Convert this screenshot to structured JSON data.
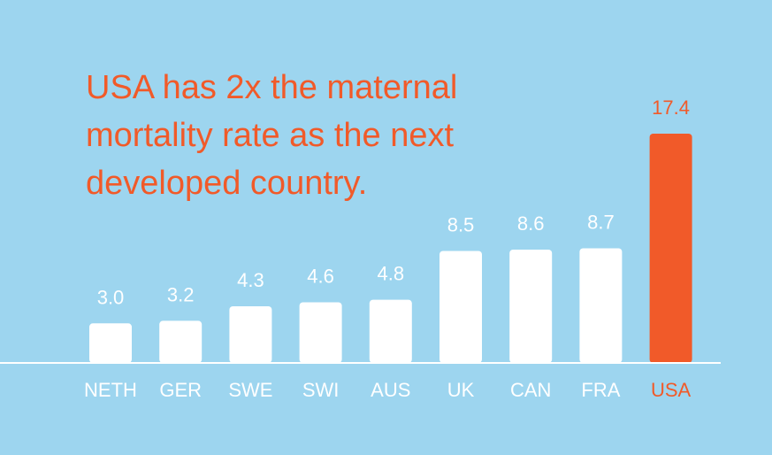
{
  "title_lines": [
    "USA has 2x the maternal",
    "mortality rate as the next",
    "developed country."
  ],
  "colors": {
    "background": "#9dd5ef",
    "bar_default": "#ffffff",
    "bar_highlight": "#f15a29",
    "text_default": "#ffffff",
    "text_highlight": "#f15a29"
  },
  "chart_data": {
    "type": "bar",
    "categories": [
      "NETH",
      "GER",
      "SWE",
      "SWI",
      "AUS",
      "UK",
      "CAN",
      "FRA",
      "USA"
    ],
    "values": [
      3.0,
      3.2,
      4.3,
      4.6,
      4.8,
      8.5,
      8.6,
      8.7,
      17.4
    ],
    "value_labels": [
      "3.0",
      "3.2",
      "4.3",
      "4.6",
      "4.8",
      "8.5",
      "8.6",
      "8.7",
      "17.4"
    ],
    "highlight_category": "USA",
    "title": "USA has 2x the maternal mortality rate as the next developed country.",
    "xlabel": "",
    "ylabel": "",
    "ylim": [
      0,
      17.4
    ],
    "grid": false,
    "legend": "none"
  }
}
